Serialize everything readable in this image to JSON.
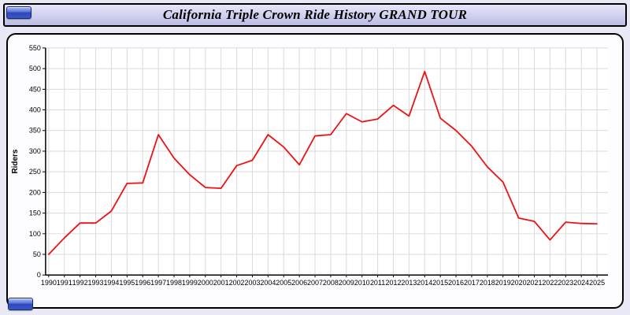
{
  "header": {
    "title": "California Triple Crown Ride History GRAND TOUR"
  },
  "buttons": {
    "top_left_label": "",
    "bottom_left_label": ""
  },
  "chart_data": {
    "type": "line",
    "title": "California Triple Crown Ride History GRAND TOUR",
    "ylabel": "Riders",
    "xlabel": "",
    "x": [
      1990,
      1991,
      1992,
      1993,
      1994,
      1995,
      1996,
      1997,
      1998,
      1999,
      2000,
      2001,
      2002,
      2003,
      2004,
      2005,
      2006,
      2007,
      2008,
      2009,
      2010,
      2011,
      2012,
      2013,
      2014,
      2015,
      2016,
      2017,
      2018,
      2019,
      2020,
      2021,
      2022,
      2023,
      2024,
      2025
    ],
    "values": [
      50,
      90,
      126,
      126,
      155,
      222,
      223,
      340,
      283,
      243,
      212,
      210,
      265,
      278,
      340,
      310,
      267,
      337,
      340,
      391,
      371,
      378,
      411,
      385,
      493,
      380,
      350,
      312,
      262,
      225,
      138,
      130,
      85,
      128,
      125,
      124
    ],
    "ylim": [
      0,
      550
    ],
    "ytick_step": 50,
    "grid": true,
    "legend": "none",
    "line_color": "#ee1111",
    "grid_color": "#d9d9d9",
    "axis_color": "#000000",
    "plot_bg": "#ffffff"
  }
}
